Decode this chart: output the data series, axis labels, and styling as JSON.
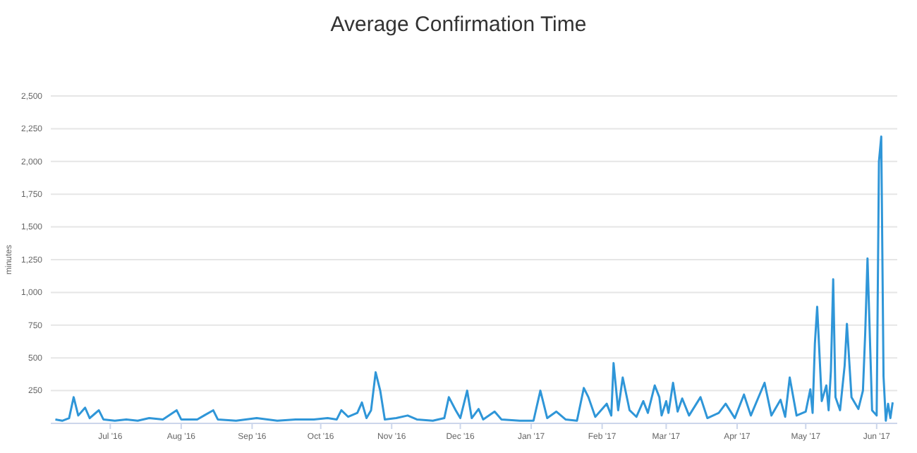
{
  "chart_data": {
    "type": "line",
    "title": "Average Confirmation Time",
    "ylabel": "minutes",
    "x": [
      "2016-06-07",
      "2016-06-10",
      "2016-06-13",
      "2016-06-15",
      "2016-06-17",
      "2016-06-20",
      "2016-06-22",
      "2016-06-24",
      "2016-06-26",
      "2016-06-28",
      "2016-07-03",
      "2016-07-08",
      "2016-07-13",
      "2016-07-18",
      "2016-07-24",
      "2016-07-30",
      "2016-08-01",
      "2016-08-08",
      "2016-08-11",
      "2016-08-15",
      "2016-08-17",
      "2016-08-25",
      "2016-09-03",
      "2016-09-12",
      "2016-09-20",
      "2016-09-28",
      "2016-10-04",
      "2016-10-08",
      "2016-10-10",
      "2016-10-13",
      "2016-10-17",
      "2016-10-19",
      "2016-10-21",
      "2016-10-23",
      "2016-10-25",
      "2016-10-27",
      "2016-10-29",
      "2016-11-03",
      "2016-11-08",
      "2016-11-12",
      "2016-11-19",
      "2016-11-24",
      "2016-11-26",
      "2016-11-29",
      "2016-12-01",
      "2016-12-04",
      "2016-12-06",
      "2016-12-09",
      "2016-12-11",
      "2016-12-16",
      "2016-12-19",
      "2016-12-27",
      "2017-01-02",
      "2017-01-05",
      "2017-01-08",
      "2017-01-12",
      "2017-01-16",
      "2017-01-21",
      "2017-01-24",
      "2017-01-26",
      "2017-01-29",
      "2017-02-03",
      "2017-02-05",
      "2017-02-06",
      "2017-02-08",
      "2017-02-10",
      "2017-02-13",
      "2017-02-16",
      "2017-02-19",
      "2017-02-21",
      "2017-02-24",
      "2017-02-26",
      "2017-02-27",
      "2017-03-01",
      "2017-03-02",
      "2017-03-04",
      "2017-03-06",
      "2017-03-08",
      "2017-03-11",
      "2017-03-16",
      "2017-03-19",
      "2017-03-24",
      "2017-03-27",
      "2017-03-31",
      "2017-04-04",
      "2017-04-07",
      "2017-04-13",
      "2017-04-16",
      "2017-04-20",
      "2017-04-22",
      "2017-04-24",
      "2017-04-27",
      "2017-05-01",
      "2017-05-03",
      "2017-05-04",
      "2017-05-05",
      "2017-05-06",
      "2017-05-08",
      "2017-05-10",
      "2017-05-11",
      "2017-05-12",
      "2017-05-13",
      "2017-05-14",
      "2017-05-16",
      "2017-05-18",
      "2017-05-19",
      "2017-05-21",
      "2017-05-24",
      "2017-05-26",
      "2017-05-27",
      "2017-05-28",
      "2017-05-30",
      "2017-06-01",
      "2017-06-02",
      "2017-06-03",
      "2017-06-04",
      "2017-06-05",
      "2017-06-06",
      "2017-06-07",
      "2017-06-08"
    ],
    "series": [
      {
        "color": "#2f96d8",
        "values": [
          30,
          20,
          40,
          200,
          60,
          120,
          40,
          70,
          100,
          30,
          20,
          30,
          20,
          40,
          30,
          100,
          30,
          30,
          60,
          100,
          30,
          20,
          40,
          20,
          30,
          30,
          40,
          30,
          100,
          50,
          80,
          160,
          40,
          100,
          390,
          250,
          30,
          40,
          60,
          30,
          20,
          40,
          200,
          100,
          40,
          250,
          40,
          110,
          30,
          90,
          30,
          20,
          20,
          250,
          40,
          90,
          30,
          20,
          270,
          200,
          50,
          150,
          60,
          460,
          100,
          350,
          100,
          50,
          170,
          80,
          290,
          200,
          60,
          170,
          80,
          310,
          90,
          190,
          60,
          200,
          40,
          80,
          150,
          40,
          220,
          60,
          310,
          60,
          180,
          50,
          350,
          60,
          90,
          260,
          80,
          610,
          890,
          170,
          290,
          100,
          400,
          1100,
          200,
          100,
          440,
          760,
          200,
          110,
          250,
          690,
          1260,
          100,
          60,
          2000,
          2190,
          360,
          20,
          150,
          40,
          160
        ]
      }
    ],
    "xlim": [
      "2016-06-05",
      "2017-06-10"
    ],
    "xticks": [
      {
        "value": "2016-07-01",
        "label": "Jul '16"
      },
      {
        "value": "2016-08-01",
        "label": "Aug '16"
      },
      {
        "value": "2016-09-01",
        "label": "Sep '16"
      },
      {
        "value": "2016-10-01",
        "label": "Oct '16"
      },
      {
        "value": "2016-11-01",
        "label": "Nov '16"
      },
      {
        "value": "2016-12-01",
        "label": "Dec '16"
      },
      {
        "value": "2017-01-01",
        "label": "Jan '17"
      },
      {
        "value": "2017-02-01",
        "label": "Feb '17"
      },
      {
        "value": "2017-03-01",
        "label": "Mar '17"
      },
      {
        "value": "2017-04-01",
        "label": "Apr '17"
      },
      {
        "value": "2017-05-01",
        "label": "May '17"
      },
      {
        "value": "2017-06-01",
        "label": "Jun '17"
      }
    ],
    "ylim": [
      0,
      2500
    ],
    "yticks": [
      {
        "value": 250,
        "label": "250"
      },
      {
        "value": 500,
        "label": "500"
      },
      {
        "value": 750,
        "label": "750"
      },
      {
        "value": 1000,
        "label": "1,000"
      },
      {
        "value": 1250,
        "label": "1,250"
      },
      {
        "value": 1500,
        "label": "1,500"
      },
      {
        "value": 1750,
        "label": "1,750"
      },
      {
        "value": 2000,
        "label": "2,000"
      },
      {
        "value": 2250,
        "label": "2,250"
      },
      {
        "value": 2500,
        "label": "2,500"
      }
    ],
    "grid": "y",
    "marker": "none",
    "line_style": "solid"
  }
}
